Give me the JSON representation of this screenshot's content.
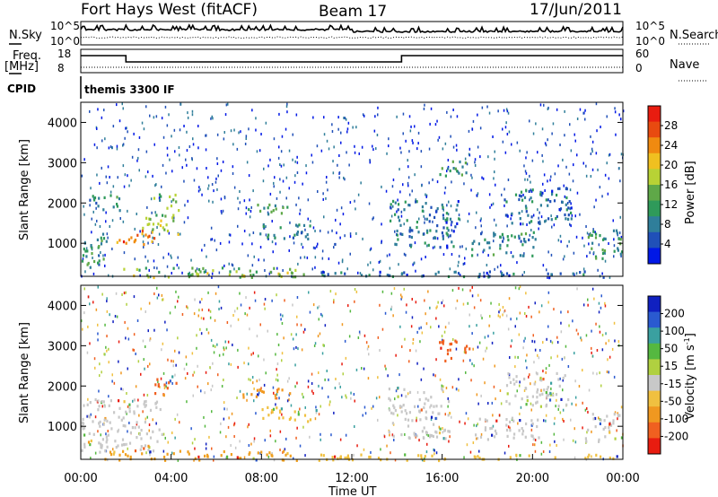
{
  "header": {
    "station": "Fort Hays West (fitACF)",
    "beam": "Beam 17",
    "date": "17/Jun/2011"
  },
  "control": {
    "nsky_label": "N.Sky",
    "nsky_ticks": [
      "10^5",
      "10^0"
    ],
    "nsearch_label": "N.Search",
    "nsearch_ticks": [
      "10^5",
      "10^0"
    ],
    "freq_label": "Freq.",
    "freq_unit": "[MHz]",
    "freq_ticks": [
      "18",
      "8"
    ],
    "nave_label": "Nave",
    "nave_ticks": [
      "60",
      "0"
    ],
    "cpid_label": "CPID",
    "cpid_value": "themis 3300 IF",
    "freq_series": {
      "x": [
        0,
        2.0,
        2.0,
        14.2,
        14.2,
        24
      ],
      "y": [
        15.5,
        15.5,
        12,
        12,
        15.5,
        15.5
      ]
    },
    "nave_series": {
      "x": [
        0,
        24
      ],
      "y": [
        6,
        6
      ]
    }
  },
  "chart_data": [
    {
      "type": "heatmap",
      "name": "power",
      "ylabel": "Slant Range [km]",
      "yticks": [
        "1000",
        "2000",
        "3000",
        "4000"
      ],
      "ylim": [
        180,
        4500
      ],
      "xlim": [
        0,
        24
      ],
      "colorbar_label": "Power [dB]",
      "colorbar_ticks": [
        "4",
        "8",
        "12",
        "16",
        "20",
        "24",
        "28"
      ],
      "colorbar_range": [
        0,
        30
      ],
      "colors": [
        "#0018e6",
        "#2050b8",
        "#2f7e9a",
        "#2f9a5a",
        "#5fa848",
        "#b8d235",
        "#f0c020",
        "#f08a10",
        "#e84a10",
        "#e81c10"
      ],
      "regions": [
        {
          "t0": 0.0,
          "t1": 1.2,
          "r0": 400,
          "r1": 1300,
          "v": 9
        },
        {
          "t0": 1.4,
          "t1": 3.3,
          "r0": 950,
          "r1": 1350,
          "v": 24
        },
        {
          "t0": 2.7,
          "t1": 4.3,
          "r0": 1250,
          "r1": 1700,
          "v": 17
        },
        {
          "t0": 3.2,
          "t1": 4.3,
          "r0": 1700,
          "r1": 2250,
          "v": 13
        },
        {
          "t0": 0.3,
          "t1": 1.7,
          "r0": 1800,
          "r1": 2250,
          "v": 7
        },
        {
          "t0": 1.0,
          "t1": 10.0,
          "r0": 180,
          "r1": 420,
          "v": 14
        },
        {
          "t0": 7.1,
          "t1": 9.4,
          "r0": 1750,
          "r1": 2000,
          "v": 10
        },
        {
          "t0": 7.9,
          "t1": 10.4,
          "r0": 1100,
          "r1": 1500,
          "v": 6
        },
        {
          "t0": 10.0,
          "t1": 24,
          "r0": 180,
          "r1": 330,
          "v": 5
        },
        {
          "t0": 13.6,
          "t1": 16.7,
          "r0": 900,
          "r1": 2100,
          "v": 6
        },
        {
          "t0": 15.7,
          "t1": 17.2,
          "r0": 2700,
          "r1": 3100,
          "v": 10
        },
        {
          "t0": 17.2,
          "t1": 20.2,
          "r0": 700,
          "r1": 1300,
          "v": 8
        },
        {
          "t0": 18.6,
          "t1": 21.7,
          "r0": 1500,
          "r1": 2400,
          "v": 6
        },
        {
          "t0": 22.3,
          "t1": 24,
          "r0": 650,
          "r1": 1350,
          "v": 10
        }
      ]
    },
    {
      "type": "heatmap",
      "name": "velocity",
      "ylabel": "Slant Range [km]",
      "yticks": [
        "1000",
        "2000",
        "3000",
        "4000"
      ],
      "ylim": [
        180,
        4500
      ],
      "xlim": [
        0,
        24
      ],
      "xticks": [
        "00:00",
        "04:00",
        "08:00",
        "12:00",
        "16:00",
        "20:00",
        "00:00"
      ],
      "xlabel": "Time UT",
      "colorbar_label": "Velocity [m s",
      "colorbar_label_sup": "-1",
      "colorbar_label_end": "]",
      "colorbar_ticks": [
        "200",
        "100",
        "50",
        "15",
        "-15",
        "-50",
        "-100",
        "-200"
      ],
      "colors": [
        "#1020c0",
        "#2a5ad0",
        "#3aa0a0",
        "#55b840",
        "#b0d040",
        "#c8c8c8",
        "#f0c040",
        "#f09820",
        "#f06020",
        "#e81c10"
      ],
      "regions": [
        {
          "t0": 0.0,
          "t1": 3.6,
          "r0": 380,
          "r1": 1700,
          "v": "#c8c8c8"
        },
        {
          "t0": 1.0,
          "t1": 10.0,
          "r0": 180,
          "r1": 420,
          "v": "#f0a020"
        },
        {
          "t0": 3.2,
          "t1": 4.2,
          "r0": 1800,
          "r1": 2300,
          "v": "#f06020"
        },
        {
          "t0": 7.1,
          "t1": 9.4,
          "r0": 1750,
          "r1": 2000,
          "v": "#f09820"
        },
        {
          "t0": 7.9,
          "t1": 10.4,
          "r0": 1150,
          "r1": 1500,
          "v": "#f0c040"
        },
        {
          "t0": 10.0,
          "t1": 24,
          "r0": 180,
          "r1": 330,
          "v": "#f0c040"
        },
        {
          "t0": 13.6,
          "t1": 16.3,
          "r0": 700,
          "r1": 2000,
          "v": "#c8c8c8"
        },
        {
          "t0": 15.8,
          "t1": 17.2,
          "r0": 2650,
          "r1": 3200,
          "v": "#f06020"
        },
        {
          "t0": 17.3,
          "t1": 20.3,
          "r0": 700,
          "r1": 1250,
          "v": "#c8c8c8"
        },
        {
          "t0": 18.8,
          "t1": 21.6,
          "r0": 1500,
          "r1": 2350,
          "v": "#c8c8c8"
        },
        {
          "t0": 22.3,
          "t1": 24,
          "r0": 650,
          "r1": 1350,
          "v": "#c8c8c8"
        }
      ]
    }
  ]
}
